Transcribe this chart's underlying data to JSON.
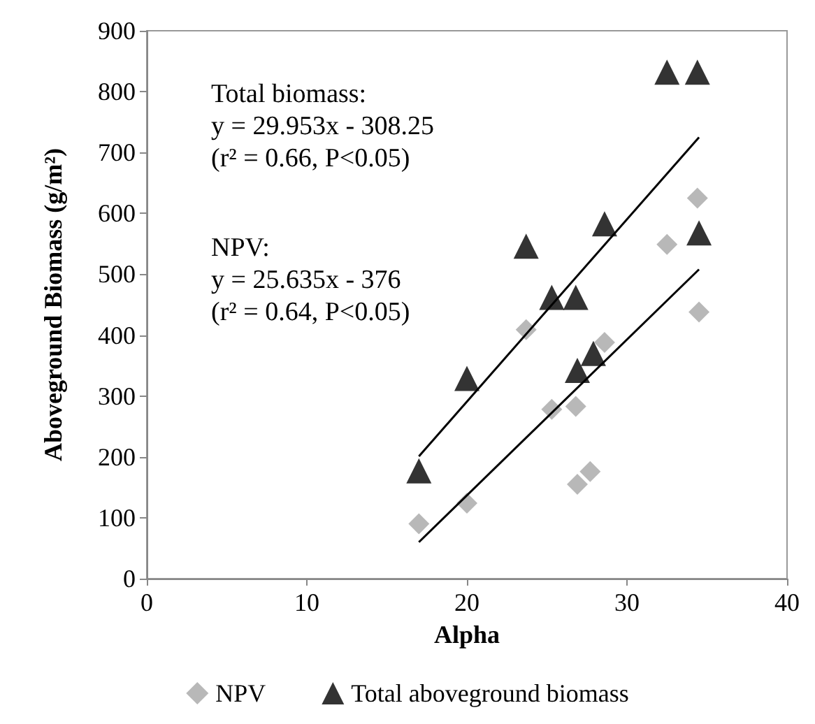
{
  "chart_data": {
    "type": "scatter",
    "xlabel": "Alpha",
    "ylabel": "Aboveground Biomass (g/m²)",
    "xlim": [
      0,
      40
    ],
    "xticks": [
      0,
      10,
      20,
      30,
      40
    ],
    "ylim": [
      0,
      900
    ],
    "yticks": [
      0,
      100,
      200,
      300,
      400,
      500,
      600,
      700,
      800,
      900
    ],
    "grid": false,
    "legend": "bottom",
    "annotations": [
      "Total biomass:\ny = 29.953x - 308.25\n(r² = 0.66, P<0.05)",
      "NPV:\ny = 25.635x - 376\n(r² = 0.64, P<0.05)"
    ],
    "series": [
      {
        "name": "NPV",
        "color": "#a6a6a6",
        "marker": "diamond",
        "x": [
          17.0,
          20.0,
          23.7,
          25.3,
          26.8,
          26.9,
          27.7,
          28.6,
          32.5,
          34.4,
          34.5
        ],
        "values": [
          90,
          124,
          409,
          278,
          283,
          155,
          176,
          388,
          549,
          625,
          438
        ]
      },
      {
        "name": "Total aboveground biomass",
        "color": "#000000",
        "marker": "triangle",
        "x": [
          17.0,
          20.0,
          23.7,
          25.3,
          26.8,
          26.9,
          27.9,
          28.6,
          32.5,
          34.4,
          34.5
        ],
        "values": [
          177,
          329,
          546,
          462,
          462,
          342,
          370,
          583,
          832,
          832,
          568
        ]
      },
      {
        "type": "line",
        "color": "#000000",
        "marker": "none",
        "x": [
          17,
          34.5
        ],
        "values": [
          201,
          725
        ]
      },
      {
        "type": "line",
        "color": "#000000",
        "marker": "none",
        "x": [
          17,
          34.5
        ],
        "values": [
          60,
          508
        ]
      }
    ]
  }
}
